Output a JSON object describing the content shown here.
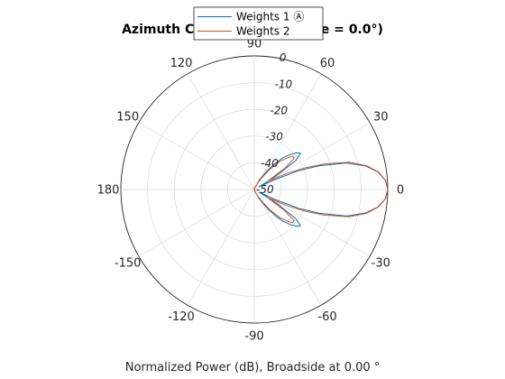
{
  "chart_data": {
    "type": "line",
    "projection": "polar",
    "title": "Azimuth Cut (elevation angle = 0.0°)",
    "xlabel": "Normalized Power (dB), Broadside at 0.00 °",
    "theta_unit": "degrees",
    "theta_tick_labels": [
      "0",
      "30",
      "60",
      "90",
      "120",
      "150",
      "180",
      "-150",
      "-120",
      "-90",
      "-60",
      "-30"
    ],
    "theta_tick_values": [
      0,
      30,
      60,
      90,
      120,
      150,
      180,
      -150,
      -120,
      -90,
      -60,
      -30
    ],
    "r_tick_labels": [
      "0",
      "-10",
      "-20",
      "-30",
      "-40",
      "-50"
    ],
    "r_tick_values": [
      0,
      -10,
      -20,
      -30,
      -40,
      -50
    ],
    "rlim": [
      -50,
      0
    ],
    "grid": true,
    "legend": {
      "position": "top",
      "entries": [
        "Weights 1 Ⓐ",
        "Weights 2"
      ]
    },
    "series": [
      {
        "name": "Weights 1 Ⓐ",
        "color": "#0072BD",
        "theta": [
          -90,
          -80,
          -70,
          -62,
          -56,
          -52,
          -48,
          -44,
          -41,
          -38,
          -35,
          -32,
          -29,
          -26,
          -23,
          -20,
          -16,
          -12,
          -8,
          -4,
          0,
          4,
          8,
          12,
          16,
          20,
          23,
          26,
          29,
          32,
          35,
          38,
          41,
          44,
          48,
          52,
          56,
          62,
          70,
          80,
          90
        ],
        "r": [
          -50,
          -50,
          -49,
          -46,
          -42,
          -38,
          -34,
          -31,
          -29,
          -28,
          -31,
          -40,
          -48,
          -42,
          -32,
          -24,
          -14,
          -7.5,
          -3.2,
          -0.8,
          0,
          -0.8,
          -3.2,
          -7.5,
          -14,
          -24,
          -32,
          -42,
          -48,
          -40,
          -31,
          -28,
          -29,
          -31,
          -34,
          -38,
          -42,
          -46,
          -49,
          -50,
          -50
        ]
      },
      {
        "name": "Weights 2",
        "color": "#D95319",
        "theta": [
          -90,
          -80,
          -70,
          -62,
          -56,
          -52,
          -48,
          -44,
          -41,
          -38,
          -35,
          -32,
          -29,
          -26,
          -23,
          -20,
          -16,
          -12,
          -8,
          -4,
          0,
          4,
          8,
          12,
          16,
          20,
          23,
          26,
          29,
          32,
          35,
          38,
          41,
          44,
          48,
          52,
          56,
          62,
          70,
          80,
          90
        ],
        "r": [
          -50,
          -50,
          -49,
          -47,
          -44,
          -40,
          -36,
          -33,
          -31,
          -31,
          -36,
          -44,
          -42,
          -36,
          -29,
          -22,
          -13,
          -7,
          -3.0,
          -0.7,
          0,
          -0.7,
          -3.0,
          -7,
          -13,
          -22,
          -29,
          -36,
          -42,
          -44,
          -36,
          -31,
          -31,
          -33,
          -36,
          -40,
          -44,
          -47,
          -49,
          -50,
          -50
        ]
      }
    ]
  }
}
